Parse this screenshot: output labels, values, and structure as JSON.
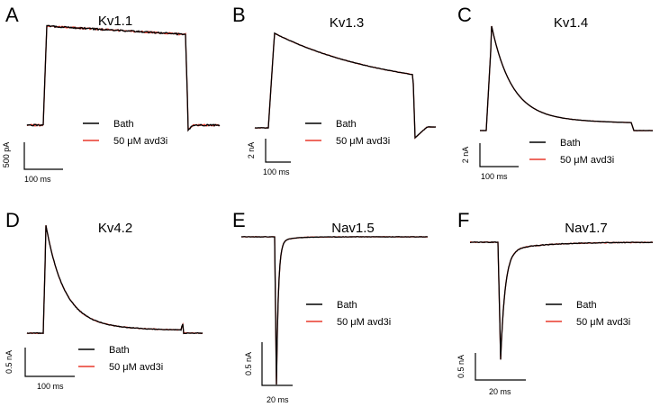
{
  "figure": {
    "colors": {
      "bath": "#000000",
      "drug": "#e8392b"
    },
    "legend": {
      "bath_label": "Bath",
      "drug_label": "50 μM avd3i"
    }
  },
  "chart_data": [
    {
      "type": "line",
      "panel": "A",
      "title": "Kv1.1",
      "kinetics": "sustained",
      "series": [
        {
          "name": "Bath",
          "color": "#000000"
        },
        {
          "name": "50 μM avd3i",
          "color": "#e8392b"
        }
      ],
      "scalebar": {
        "y_label": "500 pA",
        "x_label": "100 ms"
      }
    },
    {
      "type": "line",
      "panel": "B",
      "title": "Kv1.3",
      "kinetics": "slow-inactivating",
      "series": [
        {
          "name": "Bath",
          "color": "#000000"
        },
        {
          "name": "50 μM avd3i",
          "color": "#e8392b"
        }
      ],
      "scalebar": {
        "y_label": "2 nA",
        "x_label": "100 ms"
      }
    },
    {
      "type": "line",
      "panel": "C",
      "title": "Kv1.4",
      "kinetics": "fast-inactivating",
      "series": [
        {
          "name": "Bath",
          "color": "#000000"
        },
        {
          "name": "50 μM avd3i",
          "color": "#e8392b"
        }
      ],
      "scalebar": {
        "y_label": "2 nA",
        "x_label": "100 ms"
      }
    },
    {
      "type": "line",
      "panel": "D",
      "title": "Kv4.2",
      "kinetics": "fast-inactivating",
      "series": [
        {
          "name": "Bath",
          "color": "#000000"
        },
        {
          "name": "50 μM avd3i",
          "color": "#e8392b"
        }
      ],
      "scalebar": {
        "y_label": "0.5 nA",
        "x_label": "100 ms"
      }
    },
    {
      "type": "line",
      "panel": "E",
      "title": "Nav1.5",
      "kinetics": "inward-transient",
      "series": [
        {
          "name": "Bath",
          "color": "#000000"
        },
        {
          "name": "50 μM avd3i",
          "color": "#e8392b"
        }
      ],
      "scalebar": {
        "y_label": "0.5 nA",
        "x_label": "20 ms"
      }
    },
    {
      "type": "line",
      "panel": "F",
      "title": "Nav1.7",
      "kinetics": "inward-transient",
      "series": [
        {
          "name": "Bath",
          "color": "#000000"
        },
        {
          "name": "50 μM avd3i",
          "color": "#e8392b"
        }
      ],
      "scalebar": {
        "y_label": "0.5 nA",
        "x_label": "20 ms"
      }
    }
  ]
}
